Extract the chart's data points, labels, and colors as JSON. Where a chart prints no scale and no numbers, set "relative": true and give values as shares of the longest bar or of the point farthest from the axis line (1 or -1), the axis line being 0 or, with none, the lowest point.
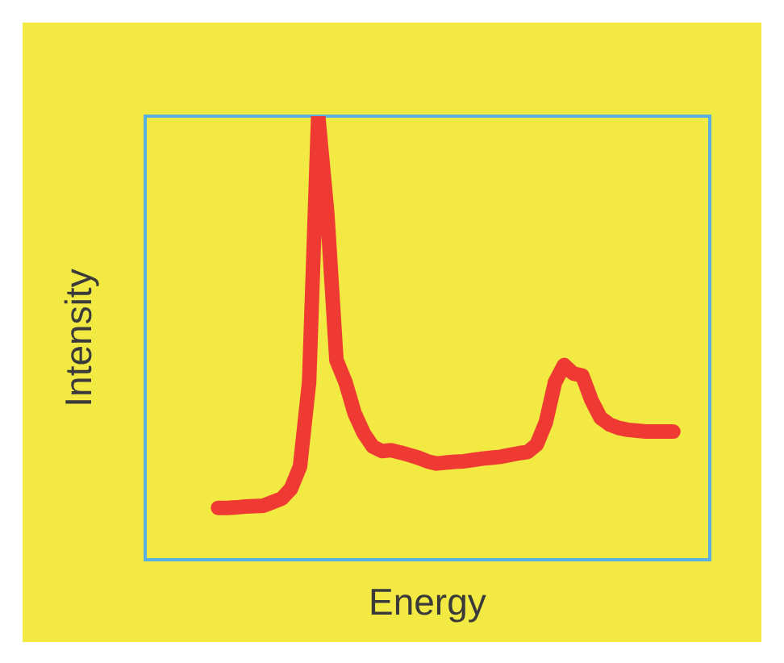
{
  "chart_data": {
    "type": "line",
    "xlabel": "Energy",
    "ylabel": "Intensity",
    "relative": true,
    "tick_labels": false,
    "legend": false,
    "marker": "none",
    "line_style": "solid",
    "categories": [
      null,
      null,
      null,
      null,
      null,
      null,
      null,
      null,
      null,
      null,
      null,
      null,
      null,
      null,
      null,
      null,
      null,
      null,
      null,
      null,
      null,
      null,
      null,
      null,
      null,
      null,
      null,
      null,
      null,
      null,
      null,
      null,
      null,
      null,
      null,
      null,
      null,
      null,
      null,
      null,
      null,
      null,
      null,
      null,
      null,
      null,
      null,
      null,
      null,
      null,
      null,
      null,
      null,
      null,
      null,
      null,
      null,
      null,
      null,
      null,
      null,
      null,
      null
    ],
    "series": [
      {
        "color": "#ee3a33",
        "values": [
          null,
          null,
          null,
          null,
          null,
          null,
          null,
          null,
          0.117,
          0.117,
          0.118,
          0.12,
          0.121,
          0.122,
          0.13,
          0.138,
          0.16,
          0.21,
          0.4,
          1,
          0.78,
          0.45,
          0.4,
          0.33,
          0.285,
          0.255,
          0.245,
          0.247,
          0.242,
          0.236,
          0.23,
          0.222,
          0.217,
          0.219,
          0.221,
          0.222,
          0.225,
          0.228,
          0.23,
          0.232,
          0.236,
          0.24,
          0.243,
          0.26,
          0.31,
          0.4,
          0.439,
          0.42,
          0.415,
          0.36,
          0.32,
          0.305,
          0.297,
          0.293,
          0.291,
          0.289,
          0.289,
          0.289,
          0.289,
          null,
          null,
          null,
          null
        ]
      }
    ]
  }
}
